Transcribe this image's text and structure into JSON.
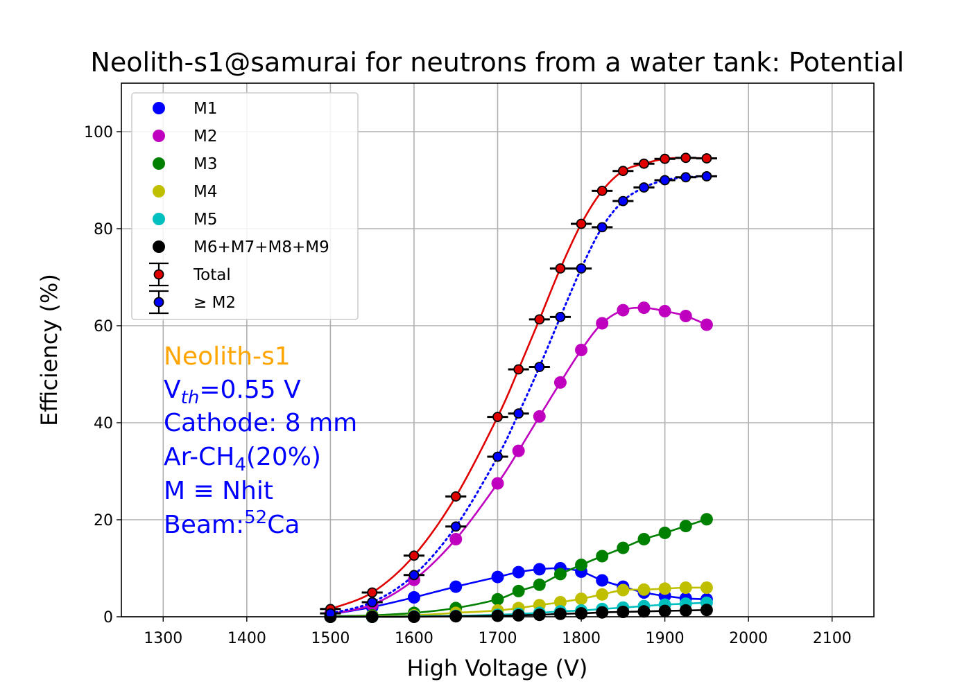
{
  "chart_data": {
    "type": "line",
    "title": "Neolith-s1@samurai for neutrons from a water tank: Potential",
    "xlabel": "High Voltage (V)",
    "ylabel": "Efficiency (%)",
    "xlim": [
      1250,
      2150
    ],
    "ylim": [
      0,
      110
    ],
    "xticks": [
      1300,
      1400,
      1500,
      1600,
      1700,
      1800,
      1900,
      2000,
      2100
    ],
    "yticks": [
      0,
      20,
      40,
      60,
      80,
      100
    ],
    "grid": true,
    "legend_position": "upper-left",
    "x": [
      1500,
      1550,
      1600,
      1650,
      1700,
      1725,
      1750,
      1775,
      1800,
      1825,
      1850,
      1875,
      1900,
      1925,
      1950
    ],
    "series": [
      {
        "name": "M1",
        "color": "#0000ff",
        "marker": "o",
        "line": "solid",
        "values": [
          0.5,
          2.0,
          4.0,
          6.2,
          8.2,
          9.2,
          9.8,
          10.0,
          9.3,
          7.5,
          6.2,
          5.0,
          4.3,
          3.8,
          3.6
        ]
      },
      {
        "name": "M2",
        "color": "#bf00bf",
        "marker": "o",
        "line": "solid",
        "values": [
          0.6,
          2.5,
          7.6,
          16.0,
          27.5,
          34.2,
          41.3,
          48.3,
          55.0,
          60.5,
          63.2,
          63.7,
          63.0,
          62.0,
          60.2
        ]
      },
      {
        "name": "M3",
        "color": "#008000",
        "marker": "o",
        "line": "solid",
        "values": [
          0.1,
          0.3,
          0.8,
          1.8,
          3.6,
          5.3,
          6.6,
          8.8,
          10.7,
          12.5,
          14.2,
          16.0,
          17.3,
          18.7,
          20.1
        ]
      },
      {
        "name": "M4",
        "color": "#bfbf00",
        "marker": "o",
        "line": "solid",
        "values": [
          0.0,
          0.1,
          0.3,
          0.8,
          1.3,
          1.8,
          2.4,
          3.0,
          3.7,
          4.6,
          5.5,
          5.6,
          5.8,
          6.0,
          6.0
        ]
      },
      {
        "name": "M5",
        "color": "#00bfbf",
        "marker": "o",
        "line": "solid",
        "values": [
          0.0,
          0.0,
          0.1,
          0.2,
          0.4,
          0.6,
          0.8,
          1.1,
          1.3,
          1.6,
          1.9,
          2.2,
          2.5,
          2.7,
          2.9
        ]
      },
      {
        "name": "M6+M7+M8+M9",
        "color": "#000000",
        "marker": "o",
        "line": "solid",
        "values": [
          0.0,
          0.0,
          0.0,
          0.1,
          0.2,
          0.3,
          0.4,
          0.6,
          0.7,
          0.9,
          1.0,
          1.1,
          1.2,
          1.3,
          1.4
        ]
      },
      {
        "name": "Total",
        "color": "#e00000",
        "marker": "o-edge",
        "line": "solid",
        "errorbars": true,
        "xerr": 12.5,
        "values": [
          1.6,
          5.0,
          12.6,
          24.8,
          41.2,
          51.0,
          61.3,
          71.8,
          81.0,
          87.8,
          91.9,
          93.4,
          94.4,
          94.6,
          94.5
        ]
      },
      {
        "name": "≥ M2",
        "color": "#0000ff",
        "marker": "o-edge",
        "line": "dotted",
        "errorbars": true,
        "xerr": 12.5,
        "values": [
          0.7,
          3.0,
          8.6,
          18.6,
          33.0,
          41.9,
          51.5,
          61.8,
          71.8,
          80.3,
          85.7,
          88.5,
          90.0,
          90.6,
          90.8
        ]
      }
    ],
    "annotations": {
      "detector": {
        "text": "Neolith-s1",
        "color": "#ffa500"
      },
      "threshold": {
        "main": "V",
        "sub": "th",
        "rest": "=0.55 V",
        "color": "#0000ff"
      },
      "cathode": {
        "text": "Cathode: 8 mm",
        "color": "#0000ff"
      },
      "gas": {
        "pre": "Ar-CH",
        "sub": "4",
        "post": "(20%)",
        "color": "#0000ff"
      },
      "multiplicity": {
        "text": "M ≡ Nhit",
        "color": "#0000ff"
      },
      "beam": {
        "pre": "Beam:",
        "sup": "52",
        "post": "Ca",
        "color": "#0000ff"
      }
    }
  }
}
